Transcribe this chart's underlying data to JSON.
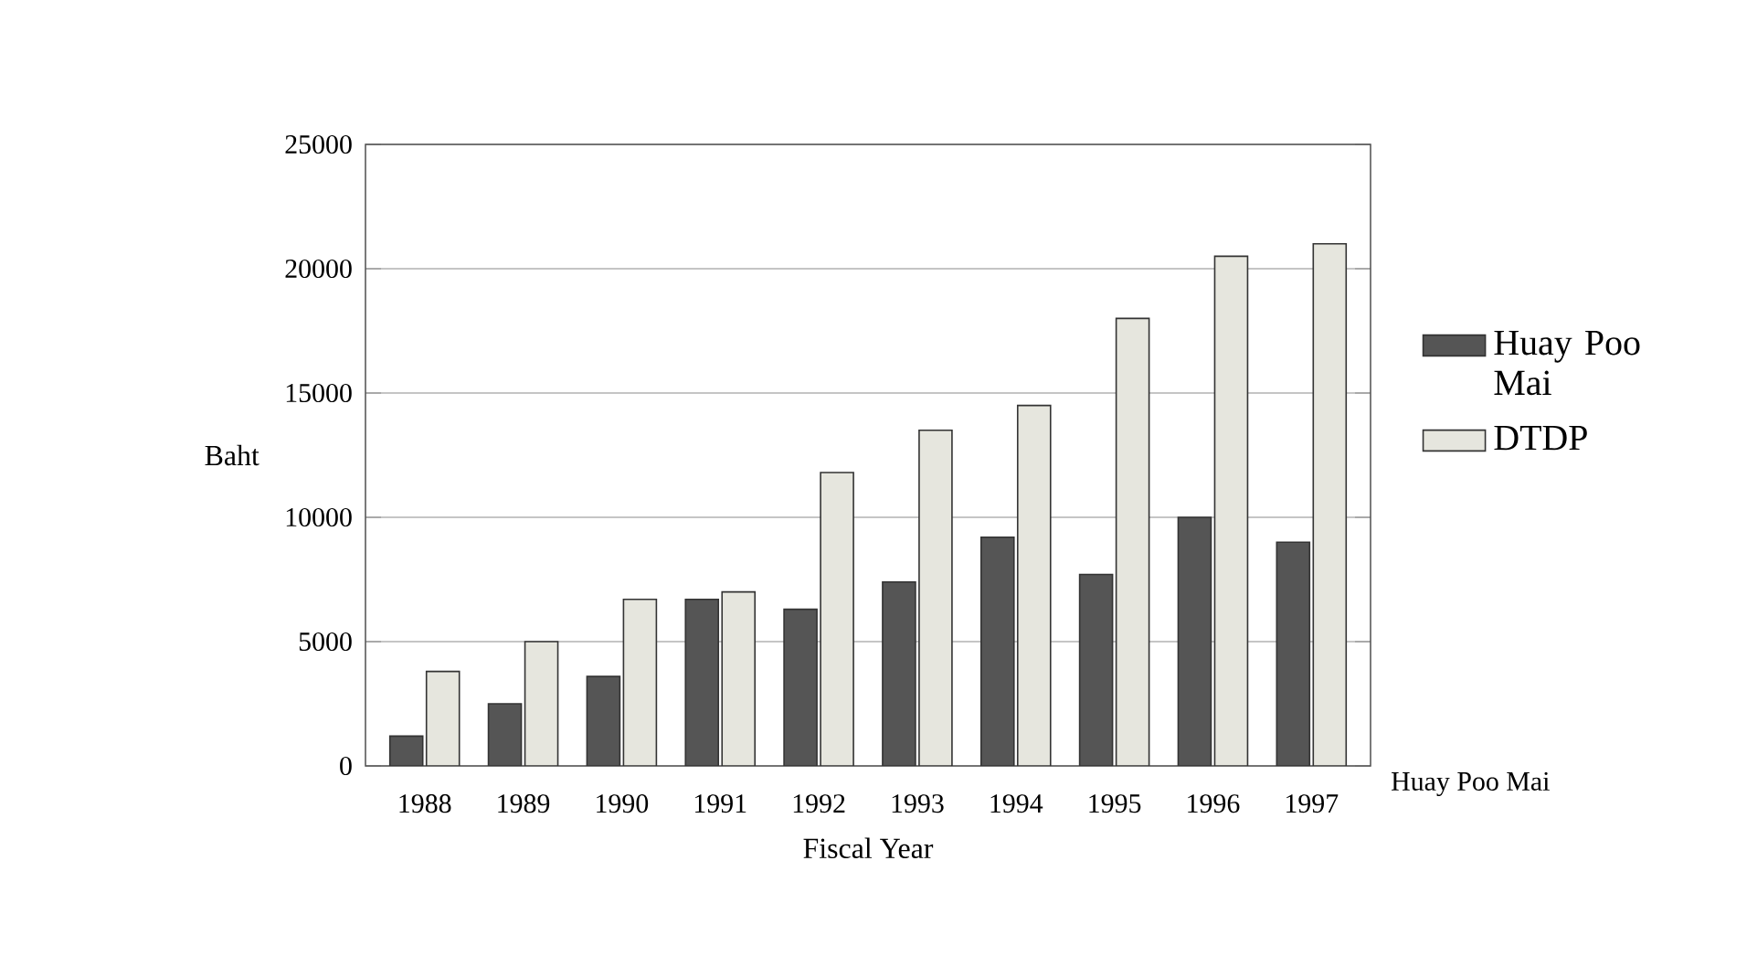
{
  "chart_data": {
    "type": "bar",
    "xlabel": "Fiscal Year",
    "ylabel": "Baht",
    "categories": [
      "1988",
      "1989",
      "1990",
      "1991",
      "1992",
      "1993",
      "1994",
      "1995",
      "1996",
      "1997"
    ],
    "series": [
      {
        "name": "Huay Poo Mai",
        "color": "#555555",
        "values": [
          1200,
          2500,
          3600,
          6700,
          6300,
          7400,
          9200,
          7700,
          10000,
          9000
        ]
      },
      {
        "name": "DTDP",
        "color": "#e6e6de",
        "values": [
          3800,
          5000,
          6700,
          7000,
          11800,
          13500,
          14500,
          18000,
          20500,
          21000
        ]
      }
    ],
    "ylim": [
      0,
      25000
    ],
    "yticks": [
      0,
      5000,
      10000,
      15000,
      20000,
      25000
    ],
    "grid": "y",
    "legend": "right",
    "annotations": [
      "Huay Poo Mai"
    ]
  }
}
